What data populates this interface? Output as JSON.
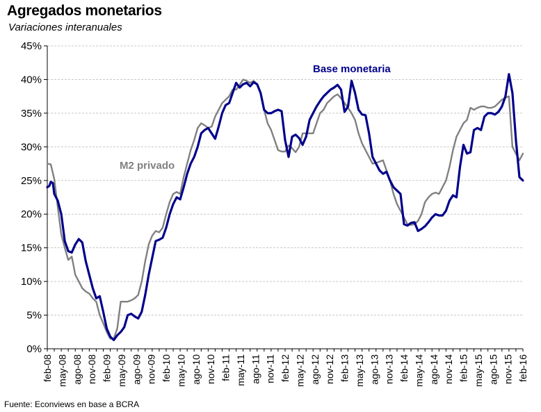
{
  "chart_data": {
    "type": "line",
    "title": "Agregados monetarios",
    "subtitle": "Variaciones interanuales",
    "source": "Fuente: Econviews en base a BCRA",
    "xlabel": "",
    "ylabel": "",
    "ylim": [
      0,
      45
    ],
    "yticks": [
      "0%",
      "5%",
      "10%",
      "15%",
      "20%",
      "25%",
      "30%",
      "35%",
      "40%",
      "45%"
    ],
    "grid": true,
    "x_tick_labels": [
      "feb-08",
      "may-08",
      "ago-08",
      "nov-08",
      "feb-09",
      "may-09",
      "ago-09",
      "nov-09",
      "feb-10",
      "may-10",
      "ago-10",
      "nov-10",
      "feb-11",
      "may-11",
      "ago-11",
      "nov-11",
      "feb-12",
      "may-12",
      "ago-12",
      "nov-12",
      "feb-13",
      "may-13",
      "ago-13",
      "nov-13",
      "feb-14",
      "may-14",
      "ago-14",
      "nov-14",
      "feb-15",
      "may-15",
      "ago-15",
      "nov-15",
      "feb-16"
    ],
    "series": [
      {
        "name": "Base monetaria",
        "color": "#00008B",
        "points": [
          [
            0,
            24.0
          ],
          [
            0.3,
            24.2
          ],
          [
            0.5,
            24.8
          ],
          [
            0.8,
            24.6
          ],
          [
            1,
            23.0
          ],
          [
            1.5,
            22.0
          ],
          [
            2,
            20.0
          ],
          [
            2.5,
            16.0
          ],
          [
            3,
            14.5
          ],
          [
            3.5,
            14.3
          ],
          [
            4,
            15.5
          ],
          [
            4.5,
            16.3
          ],
          [
            5,
            15.8
          ],
          [
            5.5,
            13.0
          ],
          [
            6,
            11.0
          ],
          [
            6.5,
            9.0
          ],
          [
            7,
            7.5
          ],
          [
            7.5,
            7.8
          ],
          [
            8,
            5.5
          ],
          [
            8.5,
            3.0
          ],
          [
            9,
            1.8
          ],
          [
            9.5,
            1.3
          ],
          [
            10,
            2.0
          ],
          [
            10.5,
            2.5
          ],
          [
            11,
            3.2
          ],
          [
            11.5,
            5.0
          ],
          [
            12,
            5.2
          ],
          [
            12.5,
            4.8
          ],
          [
            13,
            4.5
          ],
          [
            13.5,
            5.5
          ],
          [
            14,
            8.0
          ],
          [
            14.5,
            11.0
          ],
          [
            15,
            13.5
          ],
          [
            15.5,
            16.0
          ],
          [
            16,
            16.2
          ],
          [
            16.5,
            16.5
          ],
          [
            17,
            18.0
          ],
          [
            17.5,
            20.0
          ],
          [
            18,
            21.5
          ],
          [
            18.5,
            22.5
          ],
          [
            19,
            22.2
          ],
          [
            19.5,
            24.0
          ],
          [
            20,
            26.0
          ],
          [
            20.5,
            27.5
          ],
          [
            21,
            28.5
          ],
          [
            21.5,
            30.0
          ],
          [
            22,
            32.0
          ],
          [
            22.5,
            32.5
          ],
          [
            23,
            32.8
          ],
          [
            23.5,
            32.0
          ],
          [
            24,
            31.2
          ],
          [
            24.5,
            33.0
          ],
          [
            25,
            35.0
          ],
          [
            25.5,
            36.2
          ],
          [
            26,
            36.5
          ],
          [
            26.5,
            38.0
          ],
          [
            27,
            39.5
          ],
          [
            27.5,
            38.8
          ],
          [
            28,
            39.3
          ],
          [
            28.5,
            39.5
          ],
          [
            29,
            39.0
          ],
          [
            29.5,
            39.6
          ],
          [
            30,
            39.3
          ],
          [
            30.5,
            38.0
          ],
          [
            31,
            35.5
          ],
          [
            31.5,
            35.0
          ],
          [
            32,
            35.0
          ],
          [
            32.5,
            35.3
          ],
          [
            33,
            35.5
          ],
          [
            33.5,
            35.3
          ],
          [
            34,
            31.0
          ],
          [
            34.5,
            28.5
          ],
          [
            35,
            31.5
          ],
          [
            35.5,
            31.8
          ],
          [
            36,
            31.3
          ],
          [
            36.5,
            30.3
          ],
          [
            37,
            31.5
          ],
          [
            37.5,
            34.0
          ],
          [
            38,
            35.0
          ],
          [
            38.5,
            36.0
          ],
          [
            39,
            36.8
          ],
          [
            39.5,
            37.5
          ],
          [
            40,
            38.0
          ],
          [
            40.5,
            38.5
          ],
          [
            41,
            38.8
          ],
          [
            41.5,
            39.2
          ],
          [
            42,
            38.5
          ],
          [
            42.5,
            35.2
          ],
          [
            43,
            36.0
          ],
          [
            43.5,
            39.8
          ],
          [
            44,
            38.0
          ],
          [
            44.5,
            35.5
          ],
          [
            45,
            34.8
          ],
          [
            45.5,
            34.7
          ],
          [
            46,
            32.0
          ],
          [
            46.5,
            28.5
          ],
          [
            47,
            27.5
          ],
          [
            47.5,
            26.5
          ],
          [
            48,
            26.0
          ],
          [
            48.5,
            26.3
          ],
          [
            49,
            25.0
          ],
          [
            49.5,
            24.0
          ],
          [
            50,
            23.5
          ],
          [
            50.5,
            23.0
          ],
          [
            51,
            18.5
          ],
          [
            51.5,
            18.3
          ],
          [
            52,
            18.7
          ],
          [
            52.5,
            18.8
          ],
          [
            53,
            17.5
          ],
          [
            53.5,
            17.8
          ],
          [
            54,
            18.2
          ],
          [
            54.5,
            18.8
          ],
          [
            55,
            19.5
          ],
          [
            55.5,
            20.0
          ],
          [
            56,
            19.8
          ],
          [
            56.5,
            19.8
          ],
          [
            57,
            20.5
          ],
          [
            57.5,
            22.0
          ],
          [
            58,
            22.8
          ],
          [
            58.5,
            22.5
          ],
          [
            59,
            27.0
          ],
          [
            59.5,
            30.3
          ],
          [
            60,
            29.0
          ],
          [
            60.5,
            29.2
          ],
          [
            61,
            32.5
          ],
          [
            61.5,
            32.8
          ],
          [
            62,
            32.5
          ],
          [
            62.5,
            34.5
          ],
          [
            63,
            35.0
          ],
          [
            63.5,
            35.0
          ],
          [
            64,
            34.8
          ],
          [
            64.5,
            35.2
          ],
          [
            65,
            36.0
          ],
          [
            65.5,
            37.5
          ],
          [
            66,
            40.8
          ],
          [
            66.5,
            38.0
          ],
          [
            67,
            31.0
          ],
          [
            67.5,
            25.5
          ],
          [
            68,
            25.0
          ]
        ]
      },
      {
        "name": "M2 privado",
        "color": "#808080",
        "points": [
          [
            0,
            27.5
          ],
          [
            0.5,
            27.4
          ],
          [
            1,
            25.2
          ],
          [
            1.5,
            21.0
          ],
          [
            2,
            17.0
          ],
          [
            2.5,
            15.0
          ],
          [
            3,
            13.2
          ],
          [
            3.5,
            13.7
          ],
          [
            4,
            11.0
          ],
          [
            4.5,
            10.0
          ],
          [
            5,
            9.0
          ],
          [
            5.5,
            8.5
          ],
          [
            6,
            8.2
          ],
          [
            6.5,
            7.5
          ],
          [
            7,
            7.0
          ],
          [
            7.5,
            5.0
          ],
          [
            8,
            3.8
          ],
          [
            8.5,
            2.5
          ],
          [
            9,
            1.5
          ],
          [
            9.5,
            1.5
          ],
          [
            10,
            3.0
          ],
          [
            10.5,
            7.0
          ],
          [
            11,
            7.0
          ],
          [
            11.5,
            7.0
          ],
          [
            12,
            7.2
          ],
          [
            12.5,
            7.5
          ],
          [
            13,
            8.0
          ],
          [
            13.5,
            10.0
          ],
          [
            14,
            13.0
          ],
          [
            14.5,
            15.5
          ],
          [
            15,
            16.8
          ],
          [
            15.5,
            17.5
          ],
          [
            16,
            17.3
          ],
          [
            16.5,
            18.0
          ],
          [
            17,
            20.0
          ],
          [
            17.5,
            21.8
          ],
          [
            18,
            23.0
          ],
          [
            18.5,
            23.3
          ],
          [
            19,
            23.0
          ],
          [
            19.5,
            25.5
          ],
          [
            20,
            27.5
          ],
          [
            20.5,
            29.5
          ],
          [
            21,
            31.0
          ],
          [
            21.5,
            32.8
          ],
          [
            22,
            33.5
          ],
          [
            22.5,
            33.2
          ],
          [
            23,
            32.8
          ],
          [
            23.5,
            33.0
          ],
          [
            24,
            34.5
          ],
          [
            24.5,
            35.5
          ],
          [
            25,
            36.5
          ],
          [
            25.5,
            37.0
          ],
          [
            26,
            37.5
          ],
          [
            26.5,
            38.5
          ],
          [
            27,
            38.5
          ],
          [
            27.5,
            39.2
          ],
          [
            28,
            40.0
          ],
          [
            28.5,
            39.8
          ],
          [
            29,
            39.5
          ],
          [
            29.5,
            39.8
          ],
          [
            30,
            39.3
          ],
          [
            30.5,
            38.0
          ],
          [
            31,
            35.5
          ],
          [
            31.5,
            33.5
          ],
          [
            32,
            32.5
          ],
          [
            32.5,
            31.0
          ],
          [
            33,
            29.5
          ],
          [
            33.5,
            29.3
          ],
          [
            34,
            29.3
          ],
          [
            34.5,
            30.2
          ],
          [
            35,
            29.8
          ],
          [
            35.5,
            29.2
          ],
          [
            36,
            30.0
          ],
          [
            36.5,
            32.0
          ],
          [
            37,
            32.0
          ],
          [
            37.5,
            32.0
          ],
          [
            38,
            32.0
          ],
          [
            38.5,
            33.5
          ],
          [
            39,
            35.0
          ],
          [
            39.5,
            35.5
          ],
          [
            40,
            36.5
          ],
          [
            40.5,
            37.0
          ],
          [
            41,
            37.5
          ],
          [
            41.5,
            37.8
          ],
          [
            42,
            37.2
          ],
          [
            42.5,
            36.5
          ],
          [
            43,
            35.8
          ],
          [
            43.5,
            35.0
          ],
          [
            44,
            34.0
          ],
          [
            44.5,
            32.0
          ],
          [
            45,
            30.5
          ],
          [
            45.5,
            29.5
          ],
          [
            46,
            28.5
          ],
          [
            46.5,
            27.5
          ],
          [
            47,
            27.6
          ],
          [
            47.5,
            27.8
          ],
          [
            48,
            28.0
          ],
          [
            48.5,
            26.5
          ],
          [
            49,
            25.0
          ],
          [
            49.5,
            23.0
          ],
          [
            50,
            21.5
          ],
          [
            50.5,
            20.5
          ],
          [
            51,
            19.5
          ],
          [
            51.5,
            18.5
          ],
          [
            52,
            18.4
          ],
          [
            52.5,
            18.5
          ],
          [
            53,
            19.0
          ],
          [
            53.5,
            20.0
          ],
          [
            54,
            21.8
          ],
          [
            54.5,
            22.5
          ],
          [
            55,
            23.0
          ],
          [
            55.5,
            23.2
          ],
          [
            56,
            23.0
          ],
          [
            56.5,
            24.0
          ],
          [
            57,
            25.0
          ],
          [
            57.5,
            27.0
          ],
          [
            58,
            29.5
          ],
          [
            58.5,
            31.5
          ],
          [
            59,
            32.5
          ],
          [
            59.5,
            33.5
          ],
          [
            60,
            34.0
          ],
          [
            60.5,
            35.8
          ],
          [
            61,
            35.5
          ],
          [
            61.5,
            35.8
          ],
          [
            62,
            36.0
          ],
          [
            62.5,
            36.0
          ],
          [
            63,
            35.8
          ],
          [
            63.5,
            35.8
          ],
          [
            64,
            36.0
          ],
          [
            64.5,
            36.5
          ],
          [
            65,
            37.0
          ],
          [
            65.5,
            37.3
          ],
          [
            66,
            37.5
          ],
          [
            66.5,
            30.0
          ],
          [
            67,
            29.0
          ],
          [
            67.5,
            28.0
          ],
          [
            68,
            29.0
          ]
        ]
      }
    ]
  }
}
